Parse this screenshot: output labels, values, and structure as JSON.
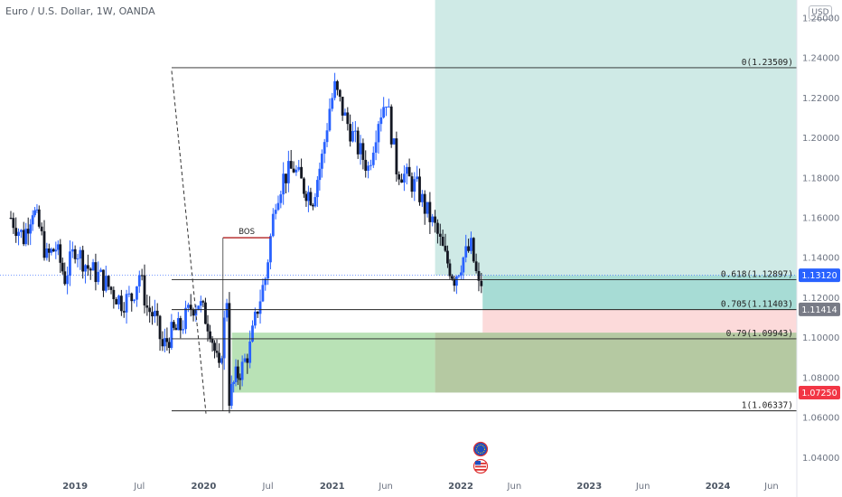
{
  "header": {
    "title": "Euro / U.S. Dollar, 1W, OANDA",
    "currency": "USD"
  },
  "chart_data": {
    "type": "candlestick",
    "symbol": "EURUSD",
    "interval": "1W",
    "ylim": [
      1.0338,
      1.269
    ],
    "y_ticks": [
      "1.26000",
      "1.24000",
      "1.22000",
      "1.20000",
      "1.18000",
      "1.16000",
      "1.14000",
      "1.12000",
      "1.10000",
      "1.08000",
      "1.06000",
      "1.04000"
    ],
    "y_tick_values": [
      1.26,
      1.24,
      1.22,
      1.2,
      1.18,
      1.16,
      1.14,
      1.12,
      1.1,
      1.08,
      1.06,
      1.04
    ],
    "x_ticks": [
      {
        "label": "2019",
        "t": 2019.0,
        "bold": true
      },
      {
        "label": "Jul",
        "t": 2019.5,
        "bold": false
      },
      {
        "label": "2020",
        "t": 2020.0,
        "bold": true
      },
      {
        "label": "Jul",
        "t": 2020.5,
        "bold": false
      },
      {
        "label": "2021",
        "t": 2021.0,
        "bold": true
      },
      {
        "label": "Jun",
        "t": 2021.417,
        "bold": false
      },
      {
        "label": "2022",
        "t": 2022.0,
        "bold": true
      },
      {
        "label": "Jun",
        "t": 2022.417,
        "bold": false
      },
      {
        "label": "2023",
        "t": 2023.0,
        "bold": true
      },
      {
        "label": "Jun",
        "t": 2023.417,
        "bold": false
      },
      {
        "label": "2024",
        "t": 2024.0,
        "bold": true
      },
      {
        "label": "Jun",
        "t": 2024.417,
        "bold": false
      }
    ],
    "candle_path": [
      [
        2018.5,
        1.16
      ],
      [
        2018.6,
        1.15
      ],
      [
        2018.67,
        1.165
      ],
      [
        2018.72,
        1.155
      ],
      [
        2018.78,
        1.14
      ],
      [
        2018.85,
        1.145
      ],
      [
        2018.92,
        1.13
      ],
      [
        2019.0,
        1.145
      ],
      [
        2019.1,
        1.135
      ],
      [
        2019.2,
        1.13
      ],
      [
        2019.28,
        1.124
      ],
      [
        2019.36,
        1.118
      ],
      [
        2019.44,
        1.12
      ],
      [
        2019.5,
        1.132
      ],
      [
        2019.56,
        1.115
      ],
      [
        2019.62,
        1.11
      ],
      [
        2019.68,
        1.095
      ],
      [
        2019.75,
        1.102
      ],
      [
        2019.82,
        1.105
      ],
      [
        2019.9,
        1.115
      ],
      [
        2019.96,
        1.118
      ],
      [
        2020.05,
        1.105
      ],
      [
        2020.12,
        1.082
      ],
      [
        2020.18,
        1.12
      ],
      [
        2020.2,
        1.07
      ],
      [
        2020.25,
        1.08
      ],
      [
        2020.3,
        1.085
      ],
      [
        2020.36,
        1.095
      ],
      [
        2020.42,
        1.115
      ],
      [
        2020.48,
        1.13
      ],
      [
        2020.56,
        1.17
      ],
      [
        2020.62,
        1.18
      ],
      [
        2020.7,
        1.185
      ],
      [
        2020.78,
        1.175
      ],
      [
        2020.85,
        1.17
      ],
      [
        2020.92,
        1.19
      ],
      [
        2020.98,
        1.215
      ],
      [
        2021.02,
        1.225
      ],
      [
        2021.1,
        1.21
      ],
      [
        2021.2,
        1.195
      ],
      [
        2021.28,
        1.185
      ],
      [
        2021.36,
        1.21
      ],
      [
        2021.42,
        1.22
      ],
      [
        2021.5,
        1.185
      ],
      [
        2021.58,
        1.18
      ],
      [
        2021.66,
        1.175
      ],
      [
        2021.72,
        1.165
      ],
      [
        2021.8,
        1.155
      ],
      [
        2021.88,
        1.14
      ],
      [
        2021.95,
        1.13
      ],
      [
        2022.02,
        1.14
      ],
      [
        2022.08,
        1.145
      ],
      [
        2022.14,
        1.125
      ],
      [
        2022.18,
        1.13
      ]
    ],
    "fib": [
      {
        "ratio": "0",
        "price": 1.23509,
        "label": "0(1.23509)"
      },
      {
        "ratio": "0.618",
        "price": 1.12897,
        "label": "0.618(1.12897)"
      },
      {
        "ratio": "0.705",
        "price": 1.11403,
        "label": "0.705(1.11403)"
      },
      {
        "ratio": "0.79",
        "price": 1.09943,
        "label": "0.79(1.09943)"
      },
      {
        "ratio": "1",
        "price": 1.06337,
        "label": "1(1.06337)"
      }
    ],
    "price_badges": [
      {
        "value": "1.13120",
        "price": 1.1312,
        "color": "#2962ff"
      },
      {
        "value": "1.11414",
        "price": 1.11414,
        "color": "#787b86"
      },
      {
        "value": "1.07250",
        "price": 1.0725,
        "color": "#f23645"
      }
    ],
    "annotation": "BOS",
    "bos_price": 1.15,
    "bos_range": [
      2020.15,
      2020.52
    ],
    "zones": {
      "long_target": {
        "from_t": 2021.8,
        "price_top": 1.269,
        "price_bottom": 1.1312,
        "color": "#cfeae6"
      },
      "long_entry": {
        "from_t": 2022.17,
        "price_top": 1.1312,
        "price_bottom": 1.1141,
        "color": "#a7dcd5"
      },
      "long_stop": {
        "from_t": 2022.17,
        "price_top": 1.1141,
        "price_bottom": 1.1025,
        "color": "#fcdada"
      },
      "demand": {
        "from_t": 2020.22,
        "to_t": 2021.8,
        "price_top": 1.1025,
        "price_bottom": 1.0725,
        "color": "#b9e2b6"
      },
      "demand_overlap": {
        "from_t": 2021.8,
        "price_top": 1.1025,
        "price_bottom": 1.0725,
        "color": "#b5c9a2"
      }
    },
    "colors": {
      "up": "#2962ff",
      "down": "#131722",
      "grid": "#ffffff",
      "text": "#6b7280"
    },
    "grid": false
  },
  "events": [
    "event-flag-icon",
    "usd-flag-icon"
  ]
}
